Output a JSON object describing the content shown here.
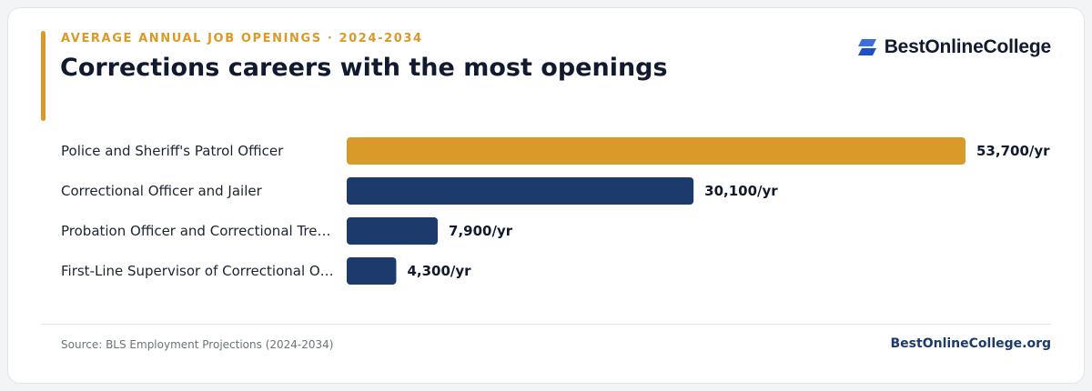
{
  "header": {
    "eyebrow": "AVERAGE ANNUAL JOB OPENINGS · 2024-2034",
    "title": "Corrections careers with the most openings",
    "logo_text": "BestOnlineCollege",
    "logo_icon": "stacked-parallelogram-icon"
  },
  "colors": {
    "accent": "#d99a29",
    "primary_bar": "#1c3a6b",
    "text_dark": "#111a2e"
  },
  "chart_data": {
    "type": "bar",
    "orientation": "horizontal",
    "categories": [
      "Police and Sheriff's Patrol Officer",
      "Correctional Officer and Jailer",
      "Probation Officer and Correctional Tre…",
      "First-Line Supervisor of Correctional O…"
    ],
    "values": [
      53700,
      30100,
      7900,
      4300
    ],
    "value_labels": [
      "53,700/yr",
      "30,100/yr",
      "7,900/yr",
      "4,300/yr"
    ],
    "highlight_index": 0,
    "xlim": [
      0,
      53700
    ],
    "grid": false,
    "title": "Corrections careers with the most openings"
  },
  "footer": {
    "source": "Source: BLS Employment Projections (2024-2034)",
    "site": "BestOnlineCollege.org"
  }
}
